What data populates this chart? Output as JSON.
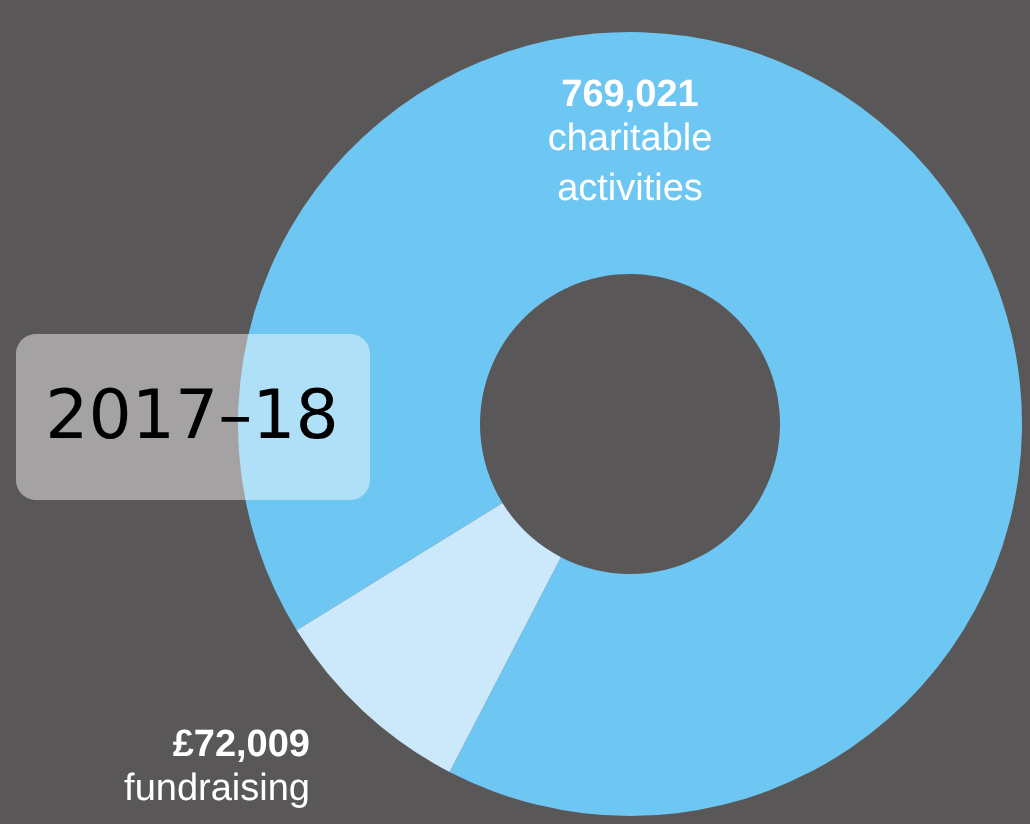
{
  "chart_data": {
    "type": "donut",
    "title": "2017–18",
    "categories": [
      "charitable activities",
      "fundraising"
    ],
    "values": [
      769021,
      72009
    ],
    "value_labels": [
      "769,021",
      "£72,009"
    ],
    "colors": [
      "#6ec6f2",
      "#cce9fb"
    ]
  }
}
